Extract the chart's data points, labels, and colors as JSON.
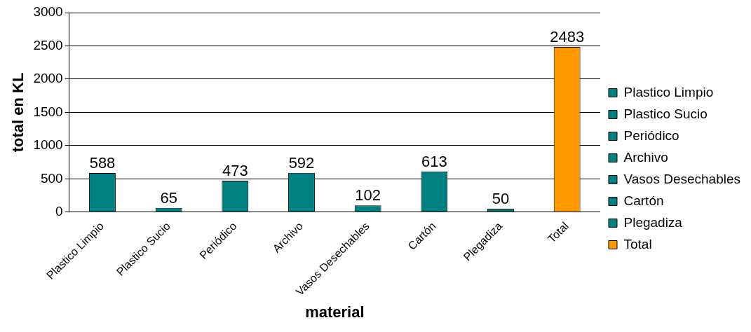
{
  "chart_data": {
    "type": "bar",
    "xlabel": "material",
    "ylabel": "total en KL",
    "categories": [
      "Plastico Limpio",
      "Plastico Sucio",
      "Periódico",
      "Archivo",
      "Vasos Desechables",
      "Cartón",
      "Plegadiza",
      "Total"
    ],
    "series": [
      {
        "name": "Plastico Limpio",
        "color": "#008080",
        "values": [
          588,
          null,
          null,
          null,
          null,
          null,
          null,
          null
        ]
      },
      {
        "name": "Plastico Sucio",
        "color": "#008080",
        "values": [
          null,
          65,
          null,
          null,
          null,
          null,
          null,
          null
        ]
      },
      {
        "name": "Periódico",
        "color": "#008080",
        "values": [
          null,
          null,
          473,
          null,
          null,
          null,
          null,
          null
        ]
      },
      {
        "name": "Archivo",
        "color": "#008080",
        "values": [
          null,
          null,
          null,
          592,
          null,
          null,
          null,
          null
        ]
      },
      {
        "name": "Vasos Desechables",
        "color": "#008080",
        "values": [
          null,
          null,
          null,
          null,
          102,
          null,
          null,
          null
        ]
      },
      {
        "name": "Cartón",
        "color": "#008080",
        "values": [
          null,
          null,
          null,
          null,
          null,
          613,
          null,
          null
        ]
      },
      {
        "name": "Plegadiza",
        "color": "#008080",
        "values": [
          null,
          null,
          null,
          null,
          null,
          null,
          50,
          null
        ]
      },
      {
        "name": "Total",
        "color": "#ff9900",
        "values": [
          null,
          null,
          null,
          null,
          null,
          null,
          null,
          2483
        ]
      }
    ],
    "ylim": [
      0,
      3000
    ],
    "yticks": [
      0,
      500,
      1000,
      1500,
      2000,
      2500,
      3000
    ],
    "grid": "y",
    "legend": "right",
    "data_labels": true
  }
}
